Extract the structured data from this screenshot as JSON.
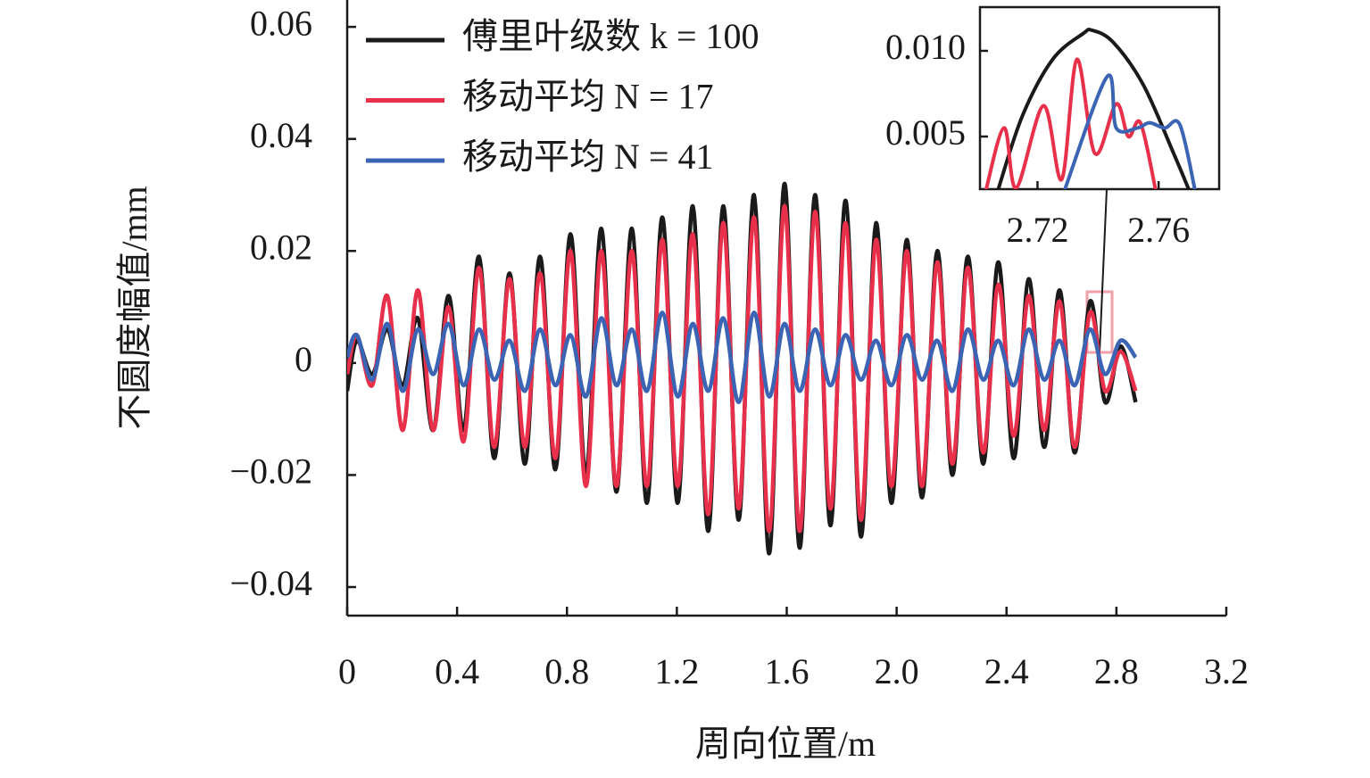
{
  "chart_data": [
    {
      "type": "line",
      "xlabel": "周向位置/m",
      "ylabel": "不圆度幅值/mm",
      "xlim": [
        0,
        3.2
      ],
      "ylim": [
        -0.0451,
        0.0648
      ],
      "xticks": [
        0,
        0.4,
        0.8,
        1.2,
        1.6,
        {
          "value": 2.0,
          "label": "2.0"
        },
        2.4,
        2.8,
        3.2
      ],
      "yticks": [
        {
          "value": -0.04,
          "label": "−0.04"
        },
        {
          "value": -0.02,
          "label": "−0.02"
        },
        0,
        0.02,
        0.04,
        0.06
      ],
      "legend": "upper left",
      "x": [
        0,
        0.035,
        0.091,
        0.146,
        0.202,
        0.257,
        0.313,
        0.369,
        0.424,
        0.48,
        0.535,
        0.591,
        0.647,
        0.702,
        0.758,
        0.813,
        0.869,
        0.925,
        0.98,
        1.036,
        1.091,
        1.147,
        1.203,
        1.258,
        1.314,
        1.369,
        1.425,
        1.481,
        1.536,
        1.592,
        1.647,
        1.703,
        1.759,
        1.814,
        1.87,
        1.925,
        1.981,
        2.037,
        2.092,
        2.148,
        2.203,
        2.259,
        2.315,
        2.37,
        2.426,
        2.481,
        2.537,
        2.593,
        2.648,
        2.704,
        2.759,
        2.815,
        2.87
      ],
      "series": [
        {
          "name": "傅里叶级数 k = 100",
          "color": "#1a1a1a",
          "values": [
            -0.005,
            0.004,
            -0.002,
            0.006,
            -0.004,
            0.008,
            -0.012,
            0.012,
            -0.012,
            0.019,
            -0.017,
            0.016,
            -0.018,
            0.019,
            -0.019,
            0.023,
            -0.02,
            0.024,
            -0.023,
            0.024,
            -0.025,
            0.026,
            -0.025,
            0.028,
            -0.03,
            0.028,
            -0.028,
            0.03,
            -0.034,
            0.032,
            -0.033,
            0.03,
            -0.029,
            0.029,
            -0.031,
            0.025,
            -0.025,
            0.022,
            -0.024,
            0.02,
            -0.02,
            0.019,
            -0.018,
            0.018,
            -0.017,
            0.015,
            -0.015,
            0.013,
            -0.016,
            0.011,
            -0.007,
            0.003,
            -0.007
          ]
        },
        {
          "name": "移动平均 N = 17",
          "color": "#e8304a",
          "values": [
            -0.002,
            0.005,
            -0.004,
            0.012,
            -0.012,
            0.013,
            -0.012,
            0.01,
            -0.014,
            0.017,
            -0.015,
            0.015,
            -0.015,
            0.016,
            -0.017,
            0.02,
            -0.022,
            0.02,
            -0.022,
            0.02,
            -0.022,
            0.022,
            -0.022,
            0.023,
            -0.027,
            0.025,
            -0.026,
            0.026,
            -0.03,
            0.028,
            -0.03,
            0.027,
            -0.026,
            0.025,
            -0.028,
            0.022,
            -0.022,
            0.02,
            -0.022,
            0.018,
            -0.018,
            0.017,
            -0.016,
            0.014,
            -0.013,
            0.012,
            -0.012,
            0.011,
            -0.015,
            0.009,
            -0.005,
            0.002,
            -0.005
          ]
        },
        {
          "name": "移动平均 N = 41",
          "color": "#3c64b4",
          "values": [
            0.001,
            0.005,
            -0.003,
            0.007,
            -0.005,
            0.006,
            -0.002,
            0.007,
            -0.004,
            0.006,
            -0.003,
            0.004,
            -0.005,
            0.006,
            -0.004,
            0.005,
            -0.006,
            0.008,
            -0.004,
            0.006,
            -0.005,
            0.009,
            -0.006,
            0.007,
            -0.005,
            0.008,
            -0.007,
            0.009,
            -0.006,
            0.007,
            -0.005,
            0.006,
            -0.004,
            0.005,
            -0.003,
            0.004,
            -0.004,
            0.005,
            -0.003,
            0.004,
            -0.005,
            0.006,
            -0.003,
            0.004,
            -0.004,
            0.006,
            -0.003,
            0.004,
            -0.004,
            0.006,
            -0.002,
            0.004,
            0.001
          ]
        }
      ]
    },
    {
      "type": "line",
      "xlim": [
        2.701,
        2.78
      ],
      "ylim": [
        0.00193,
        0.01255
      ],
      "xticks": [
        2.72,
        2.76
      ],
      "yticks": [
        0.005,
        {
          "value": 0.01,
          "label": "0.010"
        }
      ],
      "series": [
        {
          "color": "#1a1a1a",
          "x": [
            2.707,
            2.715,
            2.725,
            2.735,
            2.738,
            2.745,
            2.755,
            2.765,
            2.77
          ],
          "values": [
            0.0019,
            0.0062,
            0.0095,
            0.011,
            0.0112,
            0.0105,
            0.008,
            0.004,
            0.0019
          ]
        },
        {
          "color": "#e8304a",
          "x": [
            2.703,
            2.709,
            2.713,
            2.722,
            2.728,
            2.733,
            2.739,
            2.746,
            2.75,
            2.754,
            2.759
          ],
          "values": [
            0.0019,
            0.0055,
            0.002,
            0.0068,
            0.0025,
            0.0095,
            0.004,
            0.0069,
            0.005,
            0.0058,
            0.0019
          ]
        },
        {
          "color": "#3c64b4",
          "x": [
            2.729,
            2.743,
            2.746,
            2.753,
            2.757,
            2.762,
            2.767,
            2.772
          ],
          "values": [
            0.0019,
            0.0085,
            0.0055,
            0.0055,
            0.0058,
            0.0055,
            0.0057,
            0.0019
          ]
        }
      ]
    }
  ]
}
